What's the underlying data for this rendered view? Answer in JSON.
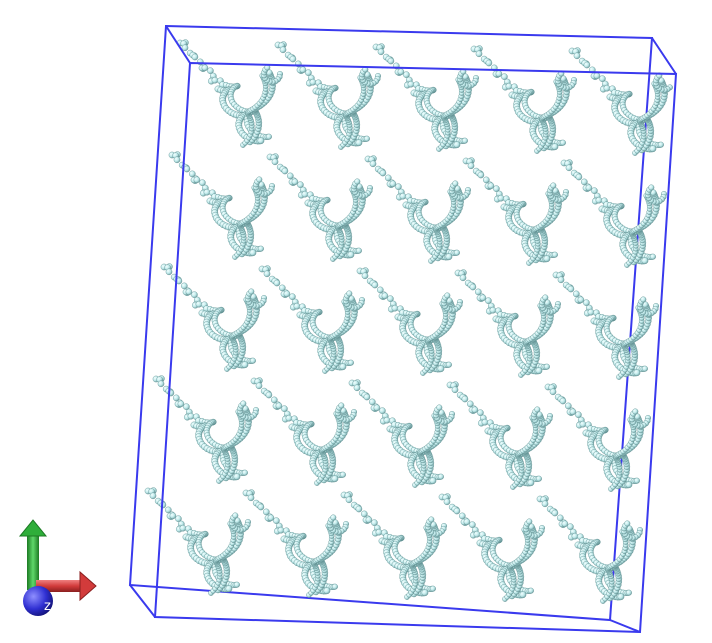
{
  "scene": {
    "background": "#ffffff",
    "box_color": "#3a3aee",
    "molecule_fill": "#bfe9ea",
    "molecule_shade": "#7fb7b9",
    "molecule_dark": "#5f8f91",
    "grid": {
      "columns": 5,
      "rows": 5
    }
  },
  "axes": {
    "y_color": "#2fae3a",
    "x_color": "#d23b3b",
    "z_color": "#2f2fd2",
    "z_label": "z"
  }
}
